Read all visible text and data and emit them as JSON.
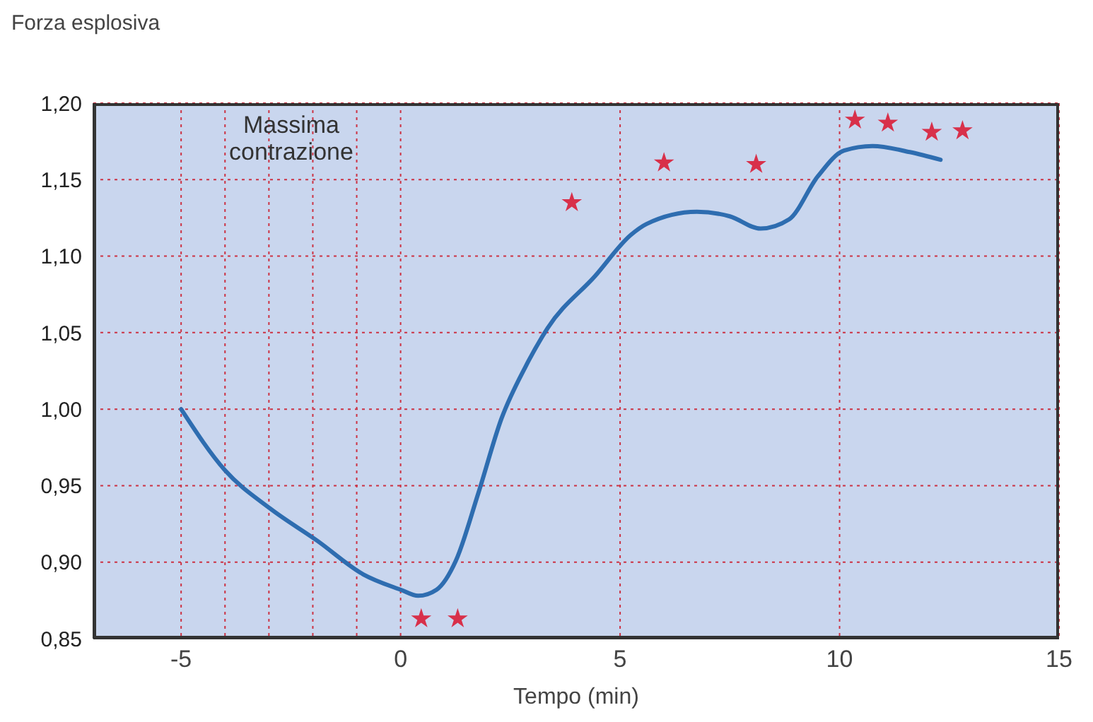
{
  "chart_data": {
    "type": "line",
    "xlabel": "Tempo (min)",
    "ylabel": "Forza esplosiva",
    "annotations": [
      "Massima contrazione"
    ],
    "xlim": [
      -7,
      15
    ],
    "xticks": [
      -5,
      {
        "value": -4,
        "label": null
      },
      {
        "value": -3,
        "label": null
      },
      {
        "value": -2,
        "label": null
      },
      {
        "value": -1,
        "label": null
      },
      0,
      5,
      10,
      15
    ],
    "ylim": [
      0.85,
      1.2
    ],
    "yticks": [
      {
        "value": 0.85,
        "label": "0,85"
      },
      {
        "value": 0.9,
        "label": "0,90"
      },
      {
        "value": 0.95,
        "label": "0,95"
      },
      {
        "value": 1.0,
        "label": "1,00"
      },
      {
        "value": 1.05,
        "label": "1,05"
      },
      {
        "value": 1.1,
        "label": "1,10"
      },
      {
        "value": 1.15,
        "label": "1,15"
      },
      {
        "value": 1.2,
        "label": "1,20"
      }
    ],
    "grid": true,
    "series": [
      {
        "color": "#2e6db0",
        "marker": "none",
        "line_style": "solid",
        "x": [
          -5,
          -4,
          -2.97,
          -1.9,
          -0.85,
          0,
          0.4,
          0.82,
          1.26,
          1.77,
          2.3,
          2.85,
          3.35,
          4.43,
          5.25,
          5.6,
          6.75,
          7.5,
          8.2,
          8.85,
          9.5,
          10.1,
          10.75,
          11.6,
          12.3
        ],
        "values": [
          1.0,
          0.96,
          0.935,
          0.914,
          0.892,
          0.882,
          0.878,
          0.882,
          0.901,
          0.945,
          0.994,
          1.028,
          1.053,
          1.087,
          1.114,
          1.121,
          1.129,
          1.126,
          1.118,
          1.124,
          1.152,
          1.169,
          1.172,
          1.168,
          1.163
        ]
      },
      {
        "type": "scatter",
        "color": "#d8304a",
        "marker": "star",
        "x": [
          0.47,
          1.3,
          3.9,
          6.0,
          8.1,
          10.35,
          11.1,
          12.1,
          12.8
        ],
        "values": [
          0.863,
          0.863,
          1.135,
          1.161,
          1.16,
          1.189,
          1.187,
          1.181,
          1.182
        ]
      }
    ]
  }
}
